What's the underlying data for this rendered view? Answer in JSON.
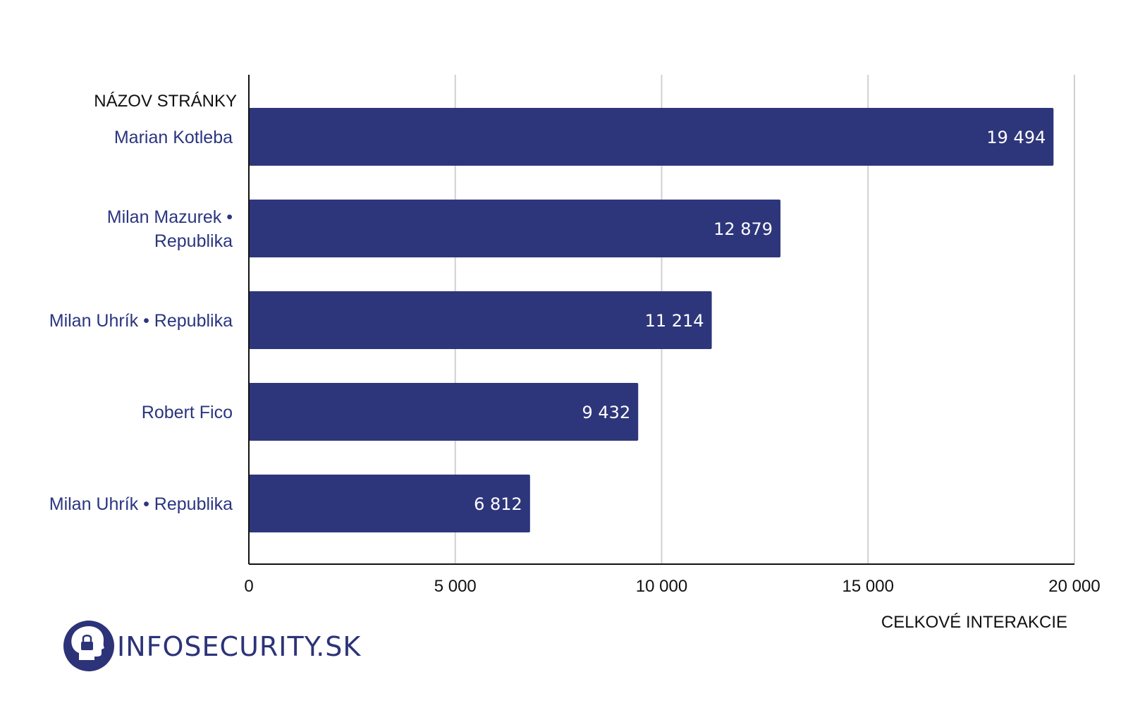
{
  "chart_data": {
    "type": "bar",
    "orientation": "horizontal",
    "categories": [
      "Marian Kotleba",
      "Milan Mazurek • Republika",
      "Milan Uhrík • Republika",
      "Robert Fico",
      "Milan Uhrík • Republika"
    ],
    "values": [
      19494,
      12879,
      11214,
      9432,
      6812
    ],
    "value_labels": [
      "19 494",
      "12 879",
      "11 214",
      "9 432",
      "6 812"
    ],
    "ylabel": "NÁZOV STRÁNKY",
    "xlabel": "CELKOVÉ INTERAKCIE",
    "xlim": [
      0,
      20000
    ],
    "x_ticks": [
      0,
      5000,
      10000,
      15000,
      20000
    ],
    "x_tick_labels": [
      "0",
      "5 000",
      "10 000",
      "15 000",
      "20 000"
    ],
    "grid": "vertical",
    "bar_color": "#2e367b"
  },
  "branding": {
    "logo_text": "INFOSECURITY.SK",
    "logo_icon": "head-lock-icon",
    "logo_color": "#2c3378"
  }
}
